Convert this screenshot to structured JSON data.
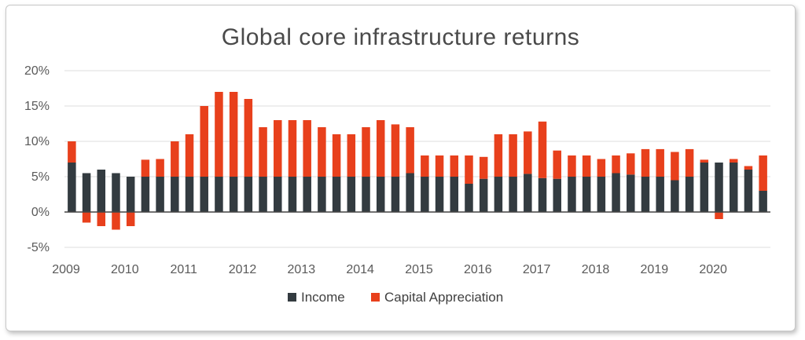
{
  "chart_data": {
    "type": "bar",
    "stacked": true,
    "title": "Global core infrastructure returns",
    "xlabel": "",
    "ylabel": "",
    "ylim": [
      -5,
      20
    ],
    "y_ticks": [
      "-5%",
      "0%",
      "5%",
      "10%",
      "15%",
      "20%"
    ],
    "y_tick_values": [
      -5,
      0,
      5,
      10,
      15,
      20
    ],
    "x_tick_labels": [
      "2009",
      "2010",
      "2011",
      "2012",
      "2013",
      "2014",
      "2015",
      "2016",
      "2017",
      "2018",
      "2019",
      "2020"
    ],
    "x_tick_start_index": [
      0,
      4,
      8,
      12,
      16,
      20,
      24,
      28,
      32,
      36,
      40,
      44
    ],
    "grid": true,
    "legend_position": "bottom",
    "series": [
      {
        "name": "Income",
        "color": "#333b40",
        "values": [
          7,
          5.5,
          6,
          5.5,
          5,
          5,
          5,
          5,
          5,
          5,
          5,
          5,
          5,
          5,
          5,
          5,
          5,
          5,
          5,
          5,
          5,
          5,
          5,
          5.5,
          5,
          5,
          5,
          4,
          4.7,
          5,
          5,
          5.4,
          4.8,
          4.7,
          5,
          5,
          5,
          5.5,
          5.3,
          5,
          5,
          4.5,
          5,
          7,
          7,
          7,
          6,
          3
        ]
      },
      {
        "name": "Capital Appreciation",
        "color": "#e8401c",
        "values": [
          3,
          -1.5,
          -2,
          -2.5,
          -2,
          2.4,
          2.5,
          5,
          6,
          10,
          12,
          12,
          11,
          7,
          8,
          8,
          8,
          7,
          6,
          6,
          7,
          8,
          7.4,
          6.5,
          3,
          3,
          3,
          4,
          3.1,
          6,
          6,
          6,
          8,
          4,
          3,
          3,
          2.5,
          2.5,
          3,
          3.9,
          3.9,
          4,
          3.9,
          0.4,
          -1,
          0.5,
          0.5,
          5
        ]
      }
    ]
  }
}
